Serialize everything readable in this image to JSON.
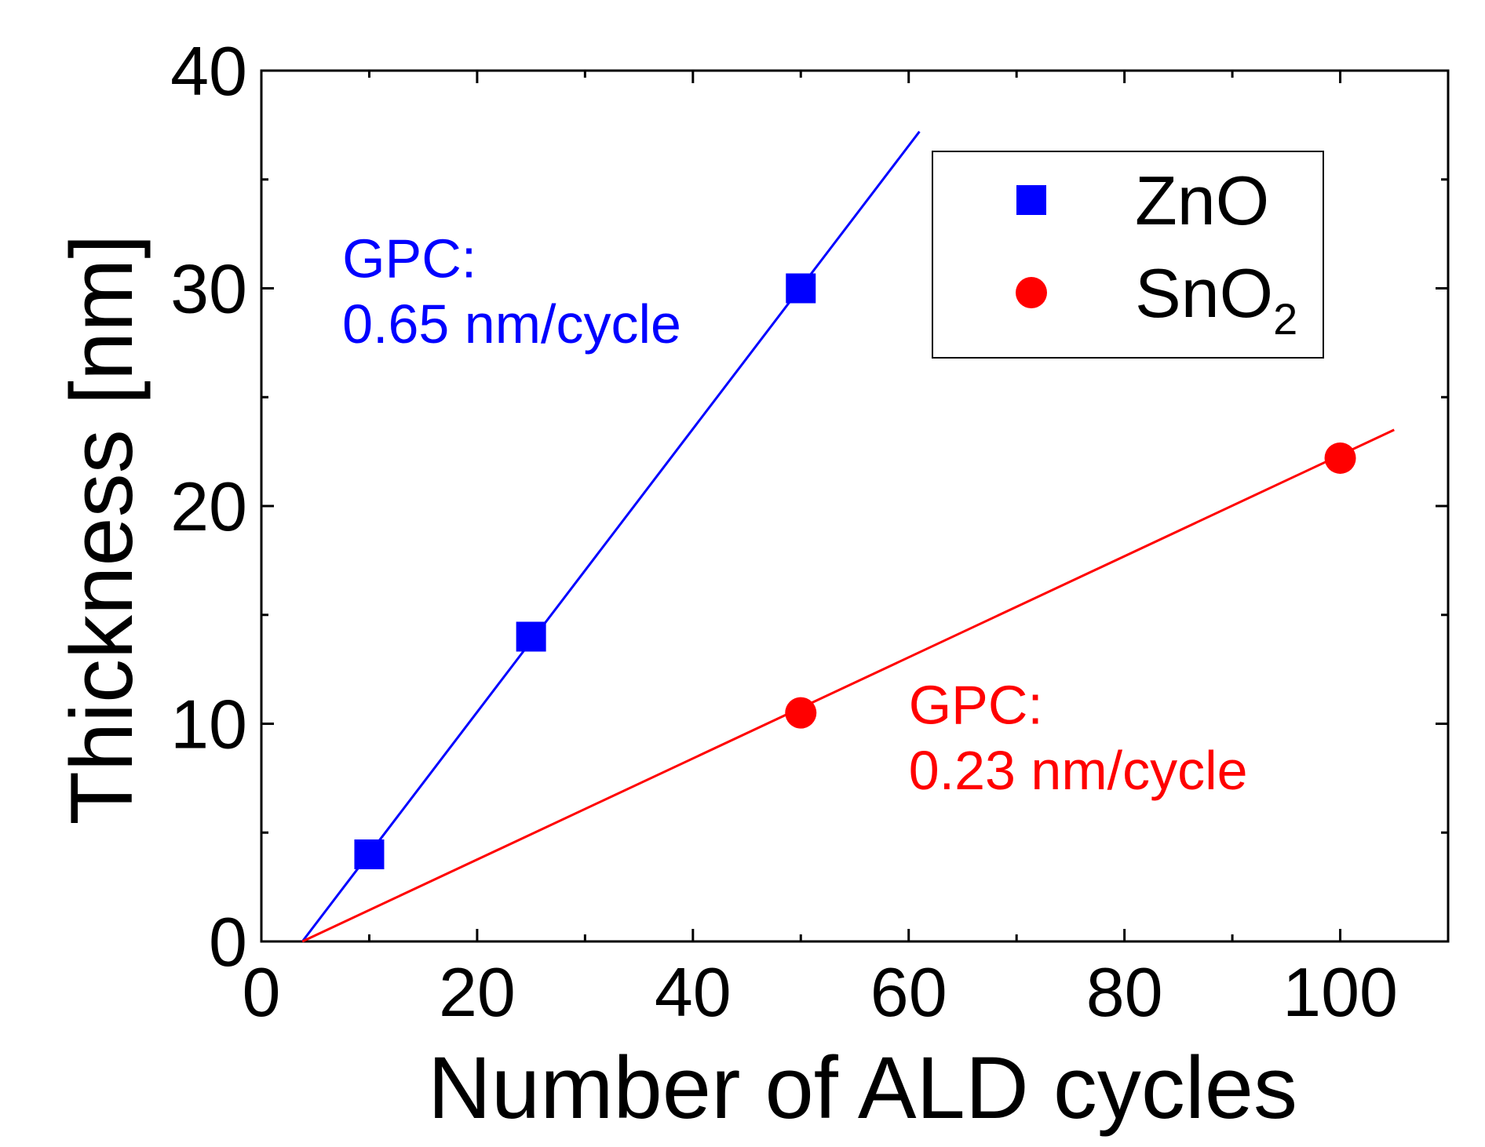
{
  "chart_data": {
    "type": "scatter",
    "title": "",
    "xlabel": "Number of ALD cycles",
    "ylabel": "Thickness [nm]",
    "xlim": [
      0,
      110
    ],
    "ylim": [
      0,
      40
    ],
    "x_major_ticks": [
      0,
      20,
      40,
      60,
      80,
      100
    ],
    "x_minor_ticks": [
      10,
      30,
      50,
      70,
      90,
      110
    ],
    "y_major_ticks": [
      0,
      10,
      20,
      30,
      40
    ],
    "y_minor_ticks": [
      5,
      15,
      25,
      35
    ],
    "grid": false,
    "legend_position": "top-right",
    "series": [
      {
        "name": "ZnO",
        "name_sub": "",
        "color": "#0000ff",
        "marker": "square",
        "x": [
          10,
          25,
          50
        ],
        "y": [
          4,
          14,
          30
        ],
        "fit": {
          "x": [
            3.8,
            61
          ],
          "y": [
            0,
            37.2
          ]
        },
        "annotation": [
          "GPC:",
          "0.65 nm/cycle"
        ],
        "annotation_pos": [
          {
            "x": 7.5,
            "y": 30.5
          },
          {
            "x": 7.5,
            "y": 27.5
          }
        ]
      },
      {
        "name": "SnO",
        "name_sub": "2",
        "color": "#ff0000",
        "marker": "circle",
        "x": [
          50,
          100
        ],
        "y": [
          10.5,
          22.2
        ],
        "fit": {
          "x": [
            3.8,
            105
          ],
          "y": [
            0,
            23.5
          ]
        },
        "annotation": [
          "GPC:",
          "0.23 nm/cycle"
        ],
        "annotation_pos": [
          {
            "x": 60,
            "y": 10
          },
          {
            "x": 60,
            "y": 7
          }
        ]
      }
    ]
  }
}
